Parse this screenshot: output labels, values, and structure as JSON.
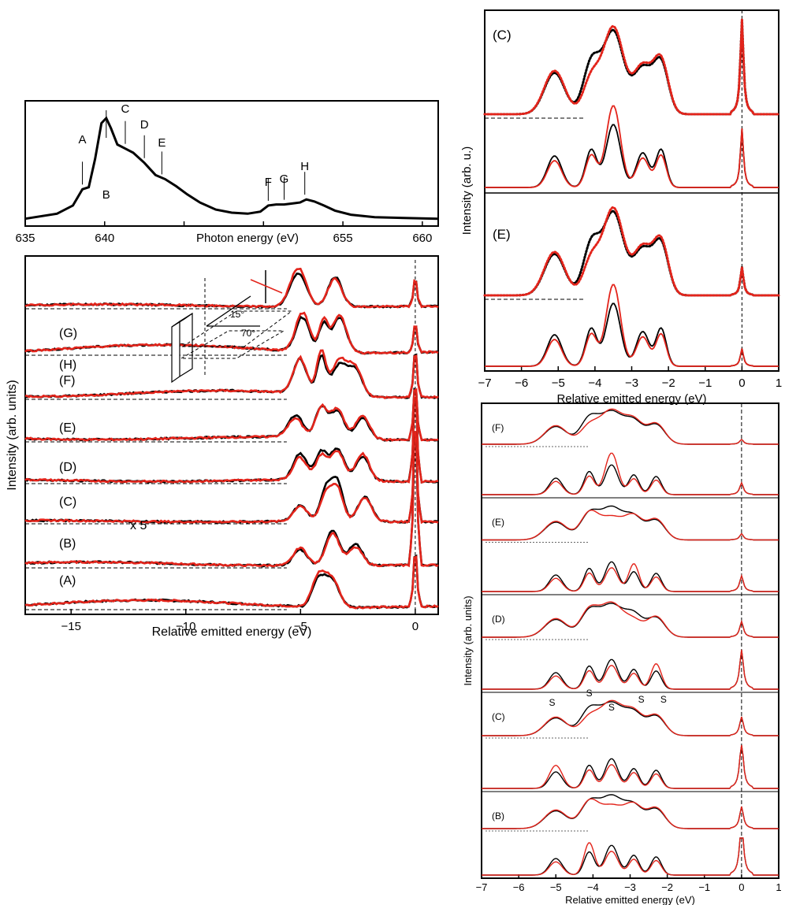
{
  "colors": {
    "black": "#000000",
    "red": "#e3241b",
    "dash": "#000000"
  },
  "chart_data": [
    {
      "id": "xas",
      "type": "line",
      "xlabel": "Photon energy (eV)",
      "ylabel": "",
      "xlim": [
        635,
        661
      ],
      "xticks": [
        635,
        640,
        645,
        650,
        655,
        660
      ],
      "xtick_labels": [
        "635",
        "640",
        "",
        "",
        "655",
        "660"
      ],
      "series": [
        {
          "x": [
            635,
            637,
            638,
            638.6,
            639,
            639.4,
            639.8,
            640.1,
            640.4,
            640.8,
            641.3,
            641.8,
            642.5,
            643.2,
            643.8,
            644.5,
            645.2,
            646,
            647,
            648,
            649,
            649.8,
            650.3,
            650.8,
            651.3,
            651.8,
            652.3,
            652.7,
            653.2,
            653.8,
            654.5,
            655.5,
            657,
            661
          ],
          "y": [
            0.01,
            0.06,
            0.14,
            0.3,
            0.32,
            0.6,
            0.95,
            1.0,
            0.9,
            0.74,
            0.7,
            0.66,
            0.56,
            0.44,
            0.4,
            0.33,
            0.25,
            0.17,
            0.1,
            0.07,
            0.06,
            0.08,
            0.14,
            0.15,
            0.15,
            0.16,
            0.17,
            0.2,
            0.18,
            0.14,
            0.09,
            0.05,
            0.025,
            0.01
          ]
        }
      ],
      "markers": [
        {
          "label": "A",
          "x": 638.6
        },
        {
          "label": "B",
          "x": 640.1
        },
        {
          "label": "C",
          "x": 641.3
        },
        {
          "label": "D",
          "x": 642.5
        },
        {
          "label": "E",
          "x": 643.6
        },
        {
          "label": "F",
          "x": 650.3
        },
        {
          "label": "G",
          "x": 651.3
        },
        {
          "label": "H",
          "x": 652.6
        }
      ]
    },
    {
      "id": "rixs_exp",
      "type": "line",
      "xlabel": "Relative emitted energy (eV)",
      "ylabel": "Intensity (arb. units)",
      "xlim": [
        -17,
        1
      ],
      "xticks": [
        -15,
        -10,
        -5,
        0
      ],
      "xtick_labels": [
        "−15",
        "−10",
        "−5",
        "0"
      ],
      "series_colors": [
        "black",
        "red"
      ],
      "spectra": [
        {
          "label": "(A)",
          "elastic": 0.6,
          "peaks": [
            [
              -4.2,
              0.8,
              0.3
            ],
            [
              -3.6,
              0.7,
              0.3
            ]
          ],
          "broad": 0.22
        },
        {
          "label": "(B)",
          "elastic": 1.6,
          "peaks": [
            [
              -5,
              0.45,
              0.3
            ],
            [
              -3.6,
              1.0,
              0.3
            ],
            [
              -2.6,
              0.6,
              0.3
            ]
          ],
          "broad": 0.12
        },
        {
          "label": "(C)",
          "elastic": 1.0,
          "peaks": [
            [
              -5,
              0.45,
              0.3
            ],
            [
              -3.9,
              0.9,
              0.25
            ],
            [
              -3.4,
              1.1,
              0.25
            ],
            [
              -2.2,
              0.7,
              0.3
            ]
          ],
          "broad": 0.05
        },
        {
          "label": "(D)",
          "elastic": 1.0,
          "peaks": [
            [
              -5,
              0.75,
              0.3
            ],
            [
              -4.1,
              0.8,
              0.25
            ],
            [
              -3.4,
              0.9,
              0.3
            ],
            [
              -2.3,
              0.7,
              0.3
            ]
          ],
          "broad": 0.08
        },
        {
          "label": "(E)",
          "elastic": 0.6,
          "peaks": [
            [
              -5.2,
              0.6,
              0.35
            ],
            [
              -4.1,
              0.9,
              0.25
            ],
            [
              -3.4,
              0.8,
              0.3
            ],
            [
              -2.3,
              0.6,
              0.3
            ]
          ],
          "broad": 0.1
        },
        {
          "label": "(F)",
          "elastic": 0.5,
          "peaks": [
            [
              -5,
              1.0,
              0.3
            ],
            [
              -4.1,
              1.1,
              0.2
            ],
            [
              -3.3,
              0.9,
              0.35
            ],
            [
              -2.6,
              0.7,
              0.3
            ]
          ],
          "broad": 0.2
        },
        {
          "label": "(G)",
          "elastic": 0.3,
          "peaks": [
            [
              -4.9,
              1.0,
              0.3
            ],
            [
              -4.0,
              0.8,
              0.2
            ],
            [
              -3.3,
              1.0,
              0.3
            ]
          ],
          "broad": 0.25
        },
        {
          "label": "(H)",
          "elastic": 0.3,
          "peaks": [
            [
              -5.1,
              0.95,
              0.35
            ],
            [
              -3.5,
              0.85,
              0.3
            ]
          ],
          "broad": 0.08
        }
      ],
      "annotations": [
        "x 5"
      ],
      "inset_angles": [
        "15°",
        "70°"
      ]
    },
    {
      "id": "rixs_CE",
      "type": "line",
      "xlabel": "Relative emitted energy (eV)",
      "ylabel": "Intensity (arb. u.)",
      "xlim": [
        -7,
        1
      ],
      "xticks": [
        -7,
        -6,
        -5,
        -4,
        -3,
        -2,
        -1,
        0,
        1
      ],
      "xtick_labels": [
        "−7",
        "−6",
        "−5",
        "−4",
        "−3",
        "−2",
        "−1",
        "0",
        "1"
      ],
      "panels": [
        "(C)",
        "(E)"
      ]
    },
    {
      "id": "rixs_calc",
      "type": "line",
      "xlabel": "Relative emitted energy (eV)",
      "ylabel": "Intensity (arb. units)",
      "xlim": [
        -7,
        1
      ],
      "xticks": [
        -7,
        -6,
        -5,
        -4,
        -3,
        -2,
        -1,
        0,
        1
      ],
      "xtick_labels": [
        "−7",
        "−6",
        "−5",
        "−4",
        "−3",
        "−2",
        "−1",
        "0",
        "1"
      ],
      "panels": [
        "(F)",
        "(E)",
        "(D)",
        "(C)",
        "(B)"
      ],
      "s_labels": [
        "S",
        "S",
        "S",
        "S",
        "S"
      ]
    }
  ]
}
